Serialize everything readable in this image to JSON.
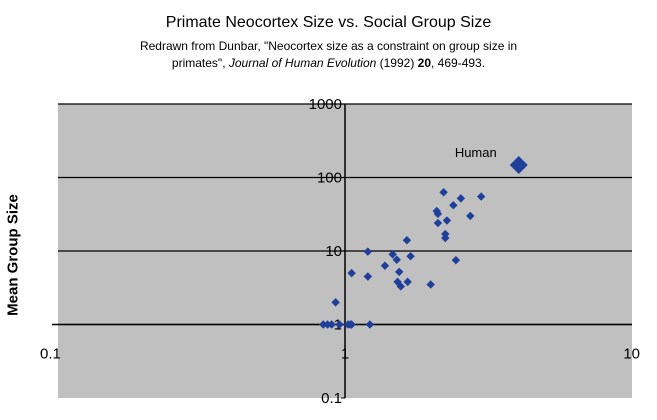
{
  "chart_data": {
    "type": "scatter",
    "title": "Primate Neocortex Size vs. Social Group Size",
    "subtitle_line1": "Redrawn from Dunbar, \"Neocortex size as a constraint on group size in",
    "subtitle_line2_a": "primates\", ",
    "subtitle_line2_journal": "Journal of Human Evolution",
    "subtitle_line2_b": " (1992) ",
    "subtitle_line2_volume": "20",
    "subtitle_line2_c": ", 469-493.",
    "xlabel": "",
    "ylabel": "Mean Group Size",
    "x_scale": "log",
    "y_scale": "log",
    "xlim": [
      0.1,
      10
    ],
    "ylim": [
      0.1,
      1000
    ],
    "x_tick_labels": [
      "0.1",
      "1",
      "10"
    ],
    "y_tick_labels": [
      "0.1",
      "1",
      "10",
      "100",
      "1000"
    ],
    "grid": "horizontal",
    "colors": {
      "plot_bg": "#c0c0c0",
      "marker": "#1f3f9b",
      "grid": "#000000"
    },
    "series": [
      {
        "marker": "diamond",
        "points": [
          [
            0.88,
            1.0
          ],
          [
            0.91,
            1.0
          ],
          [
            0.94,
            1.0
          ],
          [
            0.97,
            2.0
          ],
          [
            1.0,
            1.0
          ],
          [
            1.07,
            1.0
          ],
          [
            1.09,
            1.0
          ],
          [
            1.1,
            1.0
          ],
          [
            1.27,
            1.0
          ],
          [
            1.1,
            5.0
          ],
          [
            1.25,
            4.5
          ],
          [
            1.25,
            9.8
          ],
          [
            1.43,
            6.3
          ],
          [
            1.52,
            9.0
          ],
          [
            1.57,
            7.6
          ],
          [
            1.6,
            5.2
          ],
          [
            1.58,
            3.8
          ],
          [
            1.62,
            3.3
          ],
          [
            1.71,
            3.8
          ],
          [
            1.7,
            14.0
          ],
          [
            1.75,
            8.5
          ],
          [
            2.05,
            3.5
          ],
          [
            2.15,
            35.0
          ],
          [
            2.17,
            32.0
          ],
          [
            2.17,
            24.0
          ],
          [
            2.27,
            63.0
          ],
          [
            2.3,
            17.0
          ],
          [
            2.3,
            15.0
          ],
          [
            2.33,
            26.0
          ],
          [
            2.45,
            42.0
          ],
          [
            2.5,
            7.5
          ],
          [
            2.6,
            52.0
          ],
          [
            2.8,
            30.0
          ],
          [
            3.05,
            55.0
          ]
        ]
      },
      {
        "name": "Human",
        "marker": "diamond-large",
        "points": [
          [
            4.1,
            148.0
          ]
        ]
      }
    ],
    "annotations": [
      {
        "text": "Human"
      }
    ]
  }
}
